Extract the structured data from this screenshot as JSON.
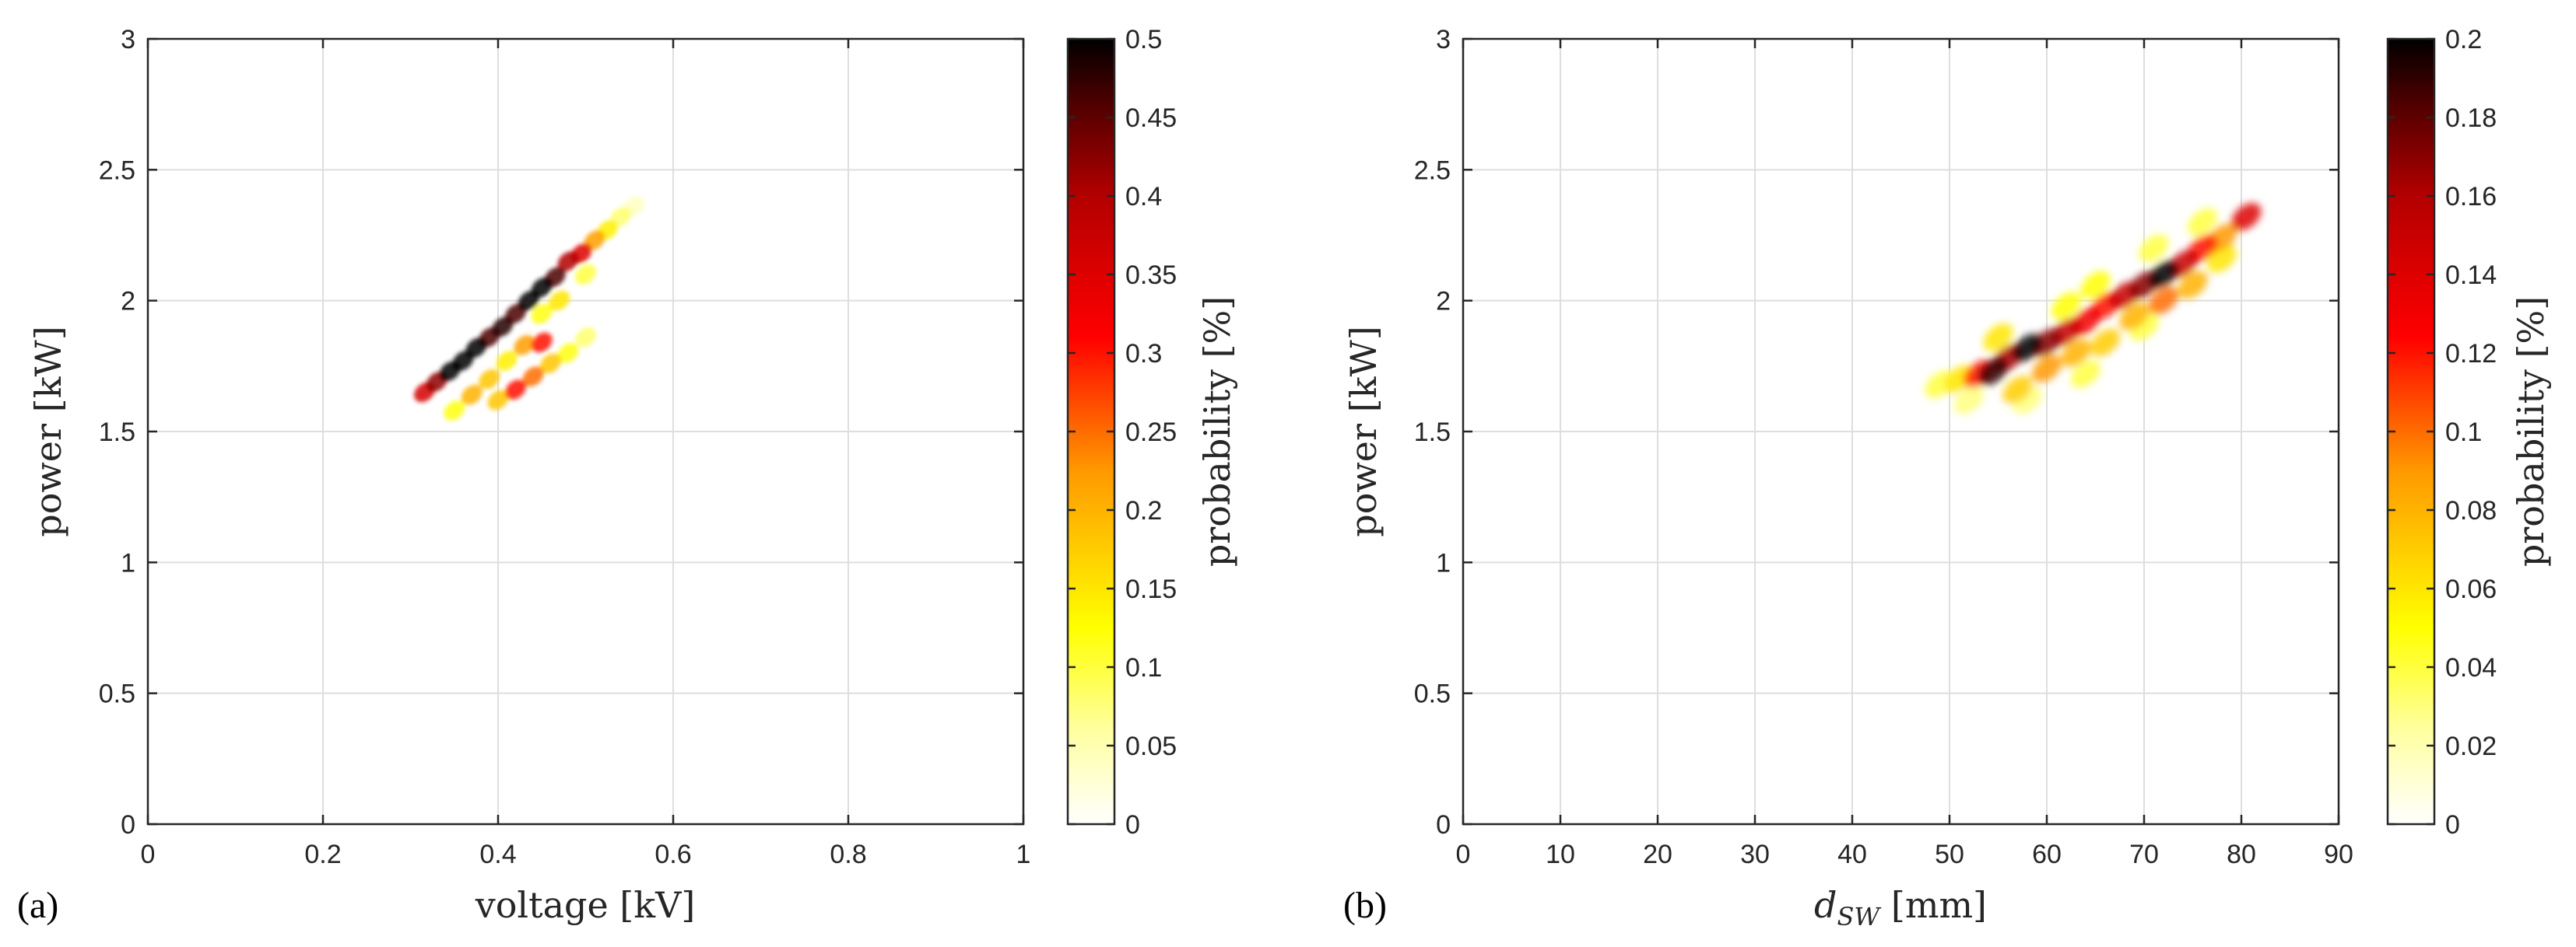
{
  "chart_data": [
    {
      "type": "heatmap",
      "panel_label": "(a)",
      "title": "",
      "xlabel": "voltage [kV]",
      "xlabel_main": "voltage [kV]",
      "xlabel_sub": "",
      "ylabel": "power [kW]",
      "colorbar_label": "probability [%]",
      "xlim": [
        0,
        1
      ],
      "ylim": [
        0,
        3
      ],
      "x_ticks": [
        0,
        0.2,
        0.4,
        0.6,
        0.8,
        1
      ],
      "x_tick_labels": [
        "0",
        "0.2",
        "0.4",
        "0.6",
        "0.8",
        "1"
      ],
      "y_ticks": [
        0,
        0.5,
        1,
        1.5,
        2,
        2.5,
        3
      ],
      "y_tick_labels": [
        "0",
        "0.5",
        "1",
        "1.5",
        "2",
        "2.5",
        "3"
      ],
      "colorbar_range": [
        0,
        0.5
      ],
      "colorbar_ticks": [
        0,
        0.05,
        0.1,
        0.15,
        0.2,
        0.25,
        0.3,
        0.35,
        0.4,
        0.45,
        0.5
      ],
      "colorbar_tick_labels": [
        "0",
        "0.05",
        "0.1",
        "0.15",
        "0.2",
        "0.25",
        "0.3",
        "0.35",
        "0.4",
        "0.45",
        "0.5"
      ],
      "colormap": "hot (reversed, white = 0)",
      "grid": true,
      "heat_blobs": [
        {
          "x": 0.316,
          "y": 1.65,
          "value": 0.36
        },
        {
          "x": 0.33,
          "y": 1.69,
          "value": 0.42
        },
        {
          "x": 0.345,
          "y": 1.73,
          "value": 0.5
        },
        {
          "x": 0.36,
          "y": 1.77,
          "value": 0.5
        },
        {
          "x": 0.375,
          "y": 1.82,
          "value": 0.5
        },
        {
          "x": 0.39,
          "y": 1.86,
          "value": 0.46
        },
        {
          "x": 0.405,
          "y": 1.9,
          "value": 0.48
        },
        {
          "x": 0.42,
          "y": 1.95,
          "value": 0.46
        },
        {
          "x": 0.435,
          "y": 2.0,
          "value": 0.5
        },
        {
          "x": 0.45,
          "y": 2.05,
          "value": 0.5
        },
        {
          "x": 0.465,
          "y": 2.09,
          "value": 0.46
        },
        {
          "x": 0.48,
          "y": 2.15,
          "value": 0.4
        },
        {
          "x": 0.495,
          "y": 2.18,
          "value": 0.35
        },
        {
          "x": 0.51,
          "y": 2.23,
          "value": 0.22
        },
        {
          "x": 0.525,
          "y": 2.27,
          "value": 0.14
        },
        {
          "x": 0.54,
          "y": 2.32,
          "value": 0.08
        },
        {
          "x": 0.555,
          "y": 2.36,
          "value": 0.04
        },
        {
          "x": 0.35,
          "y": 1.58,
          "value": 0.12
        },
        {
          "x": 0.37,
          "y": 1.64,
          "value": 0.2
        },
        {
          "x": 0.39,
          "y": 1.7,
          "value": 0.18
        },
        {
          "x": 0.41,
          "y": 1.77,
          "value": 0.14
        },
        {
          "x": 0.43,
          "y": 1.83,
          "value": 0.22
        },
        {
          "x": 0.45,
          "y": 1.84,
          "value": 0.3
        },
        {
          "x": 0.4,
          "y": 1.62,
          "value": 0.18
        },
        {
          "x": 0.42,
          "y": 1.66,
          "value": 0.3
        },
        {
          "x": 0.44,
          "y": 1.71,
          "value": 0.25
        },
        {
          "x": 0.46,
          "y": 1.76,
          "value": 0.18
        },
        {
          "x": 0.48,
          "y": 1.8,
          "value": 0.12
        },
        {
          "x": 0.5,
          "y": 1.86,
          "value": 0.08
        },
        {
          "x": 0.47,
          "y": 2.0,
          "value": 0.15
        },
        {
          "x": 0.5,
          "y": 2.1,
          "value": 0.1
        },
        {
          "x": 0.45,
          "y": 1.95,
          "value": 0.12
        }
      ]
    },
    {
      "type": "heatmap",
      "panel_label": "(b)",
      "title": "",
      "xlabel": "d_SW [mm]",
      "xlabel_main": "d",
      "xlabel_sub": "SW",
      "xlabel_unit": " [mm]",
      "ylabel": "power [kW]",
      "colorbar_label": "probability [%]",
      "xlim": [
        0,
        90
      ],
      "ylim": [
        0,
        3
      ],
      "x_ticks": [
        0,
        10,
        20,
        30,
        40,
        50,
        60,
        70,
        80,
        90
      ],
      "x_tick_labels": [
        "0",
        "10",
        "20",
        "30",
        "40",
        "50",
        "60",
        "70",
        "80",
        "90"
      ],
      "y_ticks": [
        0,
        0.5,
        1,
        1.5,
        2,
        2.5,
        3
      ],
      "y_tick_labels": [
        "0",
        "0.5",
        "1",
        "1.5",
        "2",
        "2.5",
        "3"
      ],
      "colorbar_range": [
        0,
        0.2
      ],
      "colorbar_ticks": [
        0,
        0.02,
        0.04,
        0.06,
        0.08,
        0.1,
        0.12,
        0.14,
        0.16,
        0.18,
        0.2
      ],
      "colorbar_tick_labels": [
        "0",
        "0.02",
        "0.04",
        "0.06",
        "0.08",
        "0.1",
        "0.12",
        "0.14",
        "0.16",
        "0.18",
        "0.2"
      ],
      "colormap": "hot (reversed, white = 0)",
      "grid": true,
      "heat_blobs": [
        {
          "x": 49,
          "y": 1.68,
          "value": 0.04
        },
        {
          "x": 51,
          "y": 1.7,
          "value": 0.06
        },
        {
          "x": 53,
          "y": 1.72,
          "value": 0.12
        },
        {
          "x": 54.5,
          "y": 1.73,
          "value": 0.19
        },
        {
          "x": 56,
          "y": 1.78,
          "value": 0.16
        },
        {
          "x": 58,
          "y": 1.82,
          "value": 0.2
        },
        {
          "x": 60,
          "y": 1.84,
          "value": 0.17
        },
        {
          "x": 62,
          "y": 1.88,
          "value": 0.15
        },
        {
          "x": 64,
          "y": 1.92,
          "value": 0.13
        },
        {
          "x": 66,
          "y": 1.98,
          "value": 0.12
        },
        {
          "x": 68,
          "y": 2.02,
          "value": 0.15
        },
        {
          "x": 70,
          "y": 2.06,
          "value": 0.17
        },
        {
          "x": 72,
          "y": 2.1,
          "value": 0.2
        },
        {
          "x": 74,
          "y": 2.14,
          "value": 0.15
        },
        {
          "x": 76,
          "y": 2.2,
          "value": 0.12
        },
        {
          "x": 78,
          "y": 2.24,
          "value": 0.09
        },
        {
          "x": 80.5,
          "y": 2.32,
          "value": 0.14
        },
        {
          "x": 55,
          "y": 1.86,
          "value": 0.06
        },
        {
          "x": 57,
          "y": 1.66,
          "value": 0.07
        },
        {
          "x": 60,
          "y": 1.74,
          "value": 0.09
        },
        {
          "x": 63,
          "y": 1.8,
          "value": 0.08
        },
        {
          "x": 66,
          "y": 1.84,
          "value": 0.07
        },
        {
          "x": 69,
          "y": 1.94,
          "value": 0.08
        },
        {
          "x": 72,
          "y": 2.0,
          "value": 0.1
        },
        {
          "x": 75,
          "y": 2.06,
          "value": 0.08
        },
        {
          "x": 78,
          "y": 2.16,
          "value": 0.06
        },
        {
          "x": 65,
          "y": 2.06,
          "value": 0.05
        },
        {
          "x": 62,
          "y": 1.98,
          "value": 0.05
        },
        {
          "x": 76,
          "y": 2.3,
          "value": 0.04
        },
        {
          "x": 71,
          "y": 2.2,
          "value": 0.04
        },
        {
          "x": 52,
          "y": 1.62,
          "value": 0.03
        },
        {
          "x": 58,
          "y": 1.62,
          "value": 0.03
        },
        {
          "x": 64,
          "y": 1.72,
          "value": 0.04
        },
        {
          "x": 70,
          "y": 1.9,
          "value": 0.04
        }
      ]
    }
  ]
}
